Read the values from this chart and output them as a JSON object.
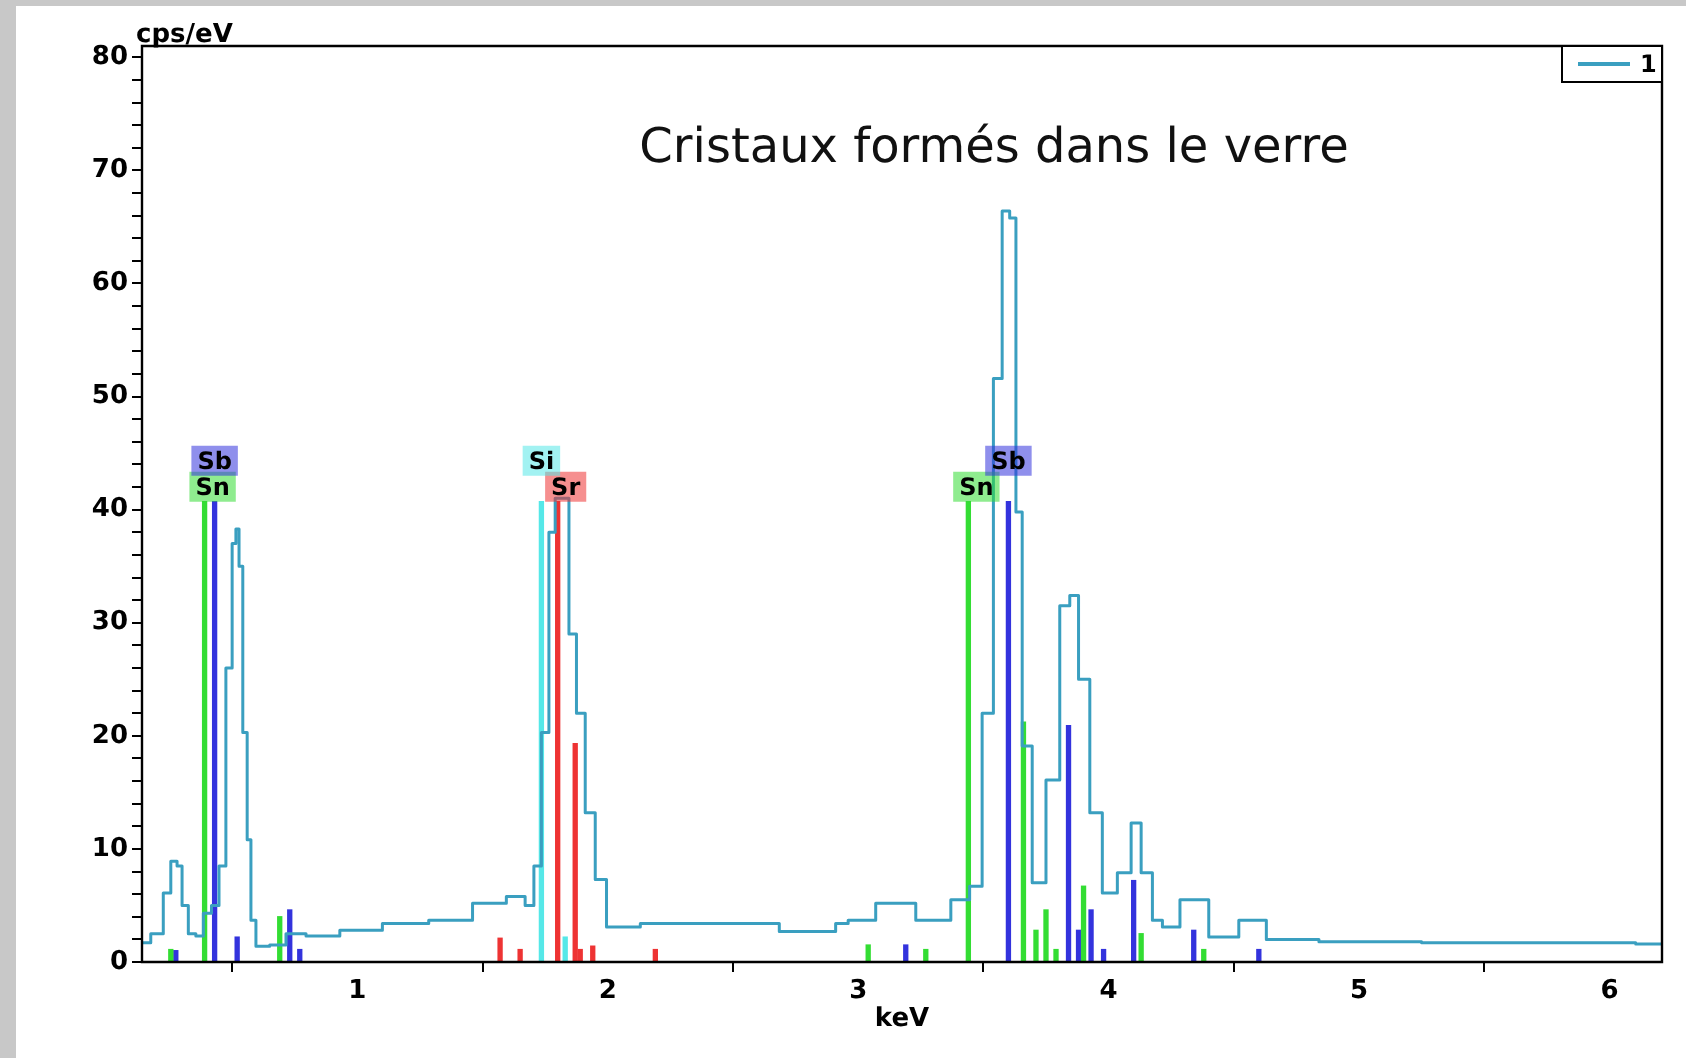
{
  "chart_data": {
    "type": "step",
    "title": "Cristaux formés dans le verre",
    "xlabel": "keV",
    "ylabel": "cps/eV",
    "xlim": [
      0.14,
      6.21
    ],
    "ylim": [
      0,
      81
    ],
    "xticks": [
      1,
      2,
      3,
      4,
      5,
      6
    ],
    "annotations": [
      {
        "text": "Sn",
        "x": 0.39,
        "y": 40.7
      },
      {
        "text": "Sb",
        "x": 0.43,
        "y": 40.7
      },
      {
        "text": "Sr",
        "x": 1.8,
        "y": 40.7
      },
      {
        "text": "Si",
        "x": 1.735,
        "y": 40.7
      },
      {
        "text": "Sn",
        "x": 3.44,
        "y": 40.7
      },
      {
        "text": "Sb",
        "x": 3.6,
        "y": 40.7
      }
    ],
    "yticks": [
      0,
      {
        "value": 2,
        "label": null
      },
      {
        "value": 4,
        "label": null
      },
      {
        "value": 6,
        "label": null
      },
      {
        "value": 8,
        "label": null
      },
      10,
      {
        "value": 12,
        "label": null
      },
      {
        "value": 14,
        "label": null
      },
      {
        "value": 16,
        "label": null
      },
      {
        "value": 18,
        "label": null
      },
      20,
      {
        "value": 22,
        "label": null
      },
      {
        "value": 24,
        "label": null
      },
      {
        "value": 26,
        "label": null
      },
      {
        "value": 28,
        "label": null
      },
      30,
      {
        "value": 32,
        "label": null
      },
      {
        "value": 34,
        "label": null
      },
      {
        "value": 36,
        "label": null
      },
      {
        "value": 38,
        "label": null
      },
      40,
      {
        "value": 42,
        "label": null
      },
      {
        "value": 44,
        "label": null
      },
      {
        "value": 46,
        "label": null
      },
      {
        "value": 48,
        "label": null
      },
      50,
      {
        "value": 52,
        "label": null
      },
      {
        "value": 54,
        "label": null
      },
      {
        "value": 56,
        "label": null
      },
      {
        "value": 58,
        "label": null
      },
      60,
      {
        "value": 62,
        "label": null
      },
      {
        "value": 64,
        "label": null
      },
      {
        "value": 66,
        "label": null
      },
      {
        "value": 68,
        "label": null
      },
      70,
      {
        "value": 72,
        "label": null
      },
      {
        "value": 74,
        "label": null
      },
      {
        "value": 76,
        "label": null
      },
      {
        "value": 78,
        "label": null
      },
      80
    ],
    "grid": false,
    "legend": "top right",
    "marker": "none",
    "line_style": "solid",
    "series": [
      {
        "name": "1",
        "color": "#3a9fc0",
        "x": [
          0.14,
          0.21,
          0.24,
          0.27,
          0.29,
          0.31,
          0.34,
          0.37,
          0.4,
          0.435,
          0.46,
          0.49,
          0.51,
          0.52,
          0.535,
          0.55,
          0.57,
          0.58,
          0.61,
          0.69,
          0.74,
          0.85,
          1.01,
          1.19,
          1.38,
          1.54,
          1.65,
          1.69,
          1.72,
          1.75,
          1.78,
          1.8,
          1.83,
          1.86,
          1.89,
          1.93,
          1.97,
          2.02,
          2.05,
          2.21,
          2.47,
          2.9,
          2.92,
          3.0,
          3.14,
          3.32,
          3.42,
          3.47,
          3.52,
          3.56,
          3.59,
          3.62,
          3.64,
          3.67,
          3.72,
          3.78,
          3.83,
          3.86,
          3.9,
          3.95,
          4.0,
          4.07,
          4.11,
          4.15,
          4.2,
          4.23,
          4.34,
          4.46,
          4.58,
          4.68,
          5.0,
          5.5,
          6.0,
          6.21
        ],
        "values": [
          1.7,
          2.5,
          6.1,
          8.9,
          8.5,
          5.0,
          2.5,
          2.3,
          4.3,
          5.0,
          8.5,
          26,
          37,
          38.3,
          35,
          20.3,
          10.8,
          3.7,
          1.4,
          1.5,
          2.5,
          2.3,
          2.8,
          3.4,
          3.7,
          5.2,
          5.8,
          5.0,
          8.5,
          20.3,
          38,
          41,
          41,
          29,
          22,
          13.2,
          7.3,
          3.1,
          3.1,
          3.4,
          3.4,
          2.7,
          3.4,
          3.7,
          5.2,
          3.7,
          5.5,
          6.7,
          22,
          51.6,
          66.4,
          65.8,
          39.8,
          19.1,
          7.0,
          16.1,
          31.5,
          32.4,
          25,
          13.2,
          6.1,
          7.9,
          12.3,
          7.9,
          3.7,
          3.1,
          5.5,
          2.2,
          3.7,
          2.0,
          1.8,
          1.7,
          1.7,
          1.6
        ]
      },
      {
        "type": "bar",
        "color": "#33dd33",
        "x": [
          0.255,
          0.39,
          0.69,
          3.04,
          3.27,
          3.44,
          3.66,
          3.71,
          3.75,
          3.79,
          3.9,
          4.13,
          4.38
        ],
        "values": [
          1.1,
          40.7,
          4.0,
          1.5,
          1.1,
          40.7,
          21.2,
          2.8,
          4.6,
          1.1,
          6.7,
          2.5,
          1.1
        ]
      },
      {
        "type": "bar",
        "color": "#3333dd",
        "x": [
          0.275,
          0.43,
          0.52,
          0.73,
          0.77,
          3.19,
          3.6,
          3.84,
          3.88,
          3.93,
          3.98,
          4.1,
          4.34,
          4.6
        ],
        "values": [
          1.0,
          40.7,
          2.2,
          4.6,
          1.1,
          1.5,
          40.7,
          20.9,
          2.8,
          4.6,
          1.1,
          7.2,
          2.8,
          1.1
        ]
      },
      {
        "type": "bar",
        "color": "#ee3333",
        "x": [
          1.57,
          1.65,
          1.8,
          1.87,
          1.89,
          1.94,
          2.19
        ],
        "values": [
          2.1,
          1.1,
          40.7,
          19.3,
          1.1,
          1.4,
          1.1
        ]
      },
      {
        "type": "bar",
        "color": "#55e8e8",
        "x": [
          1.735,
          1.83
        ],
        "values": [
          40.7,
          2.2
        ]
      }
    ]
  }
}
